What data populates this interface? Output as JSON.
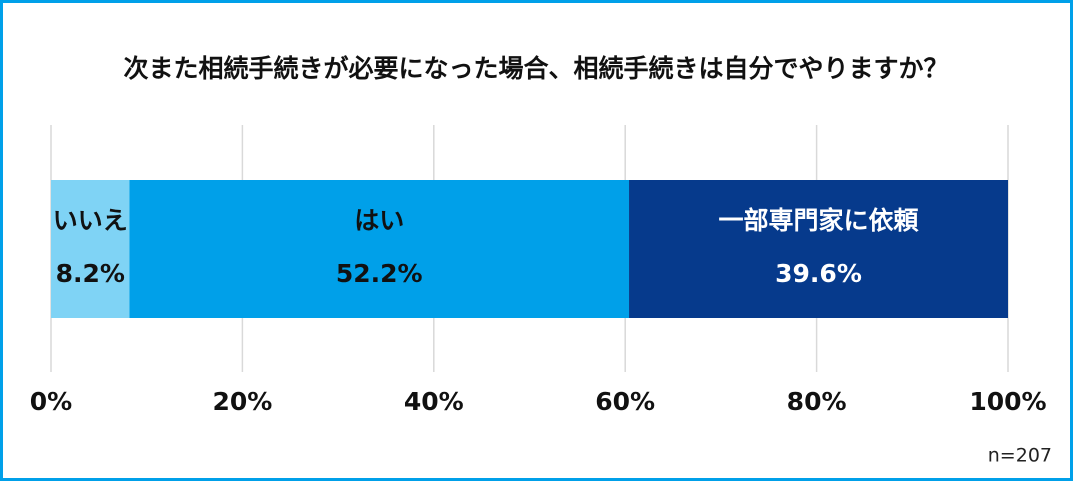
{
  "chart_data": {
    "type": "bar",
    "orientation": "horizontal",
    "stacked": true,
    "title": "次また相続手続きが必要になった場合、相続手続きは自分でやりますか？",
    "series": [
      {
        "name": "いいえ",
        "color": "#7fd3f5",
        "values": [
          8.2
        ],
        "value_labels": [
          "8.2%"
        ]
      },
      {
        "name": "はい",
        "color": "#00a0e9",
        "values": [
          52.2
        ],
        "value_labels": [
          "52.2%"
        ]
      },
      {
        "name": "一部専門家に依頼",
        "color": "#063a8c",
        "values": [
          39.6
        ],
        "value_labels": [
          "39.6%"
        ]
      }
    ],
    "xlim": [
      0,
      100
    ],
    "xticks": [
      {
        "value": 0,
        "label": "0%"
      },
      {
        "value": 20,
        "label": "20%"
      },
      {
        "value": 40,
        "label": "40%"
      },
      {
        "value": 60,
        "label": "60%"
      },
      {
        "value": 80,
        "label": "80%"
      },
      {
        "value": 100,
        "label": "100%"
      }
    ],
    "grid": true,
    "annotation": "n=207"
  }
}
